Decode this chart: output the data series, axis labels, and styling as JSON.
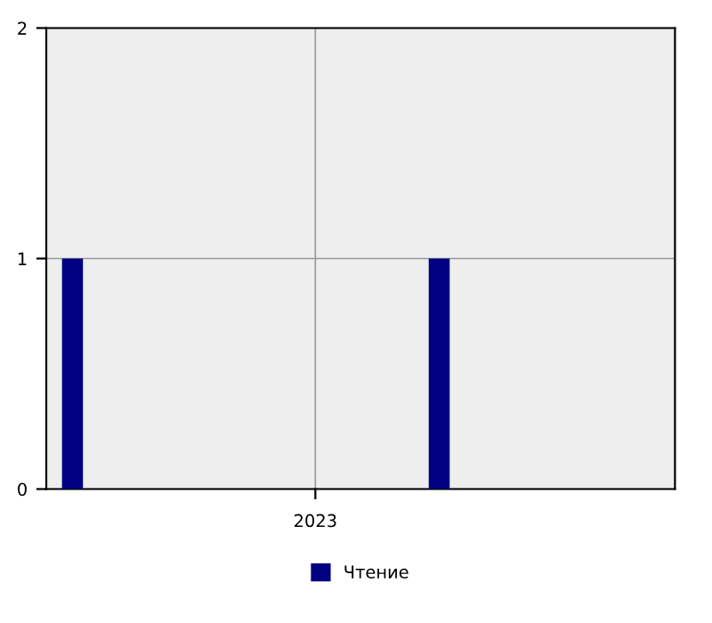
{
  "chart_data": {
    "type": "bar",
    "categories": [
      null,
      null,
      null,
      null,
      null,
      null,
      null,
      null,
      null,
      null,
      null,
      null
    ],
    "series": [
      {
        "name": "Чтение",
        "color": "#000080",
        "values": [
          1,
          null,
          null,
          null,
          null,
          null,
          null,
          1,
          null,
          null,
          null,
          null
        ]
      }
    ],
    "annotations": [
      "2023"
    ],
    "ylim": [
      0,
      2
    ],
    "yticks": [
      0,
      1,
      2
    ],
    "grid": true,
    "legend": "bottom"
  }
}
